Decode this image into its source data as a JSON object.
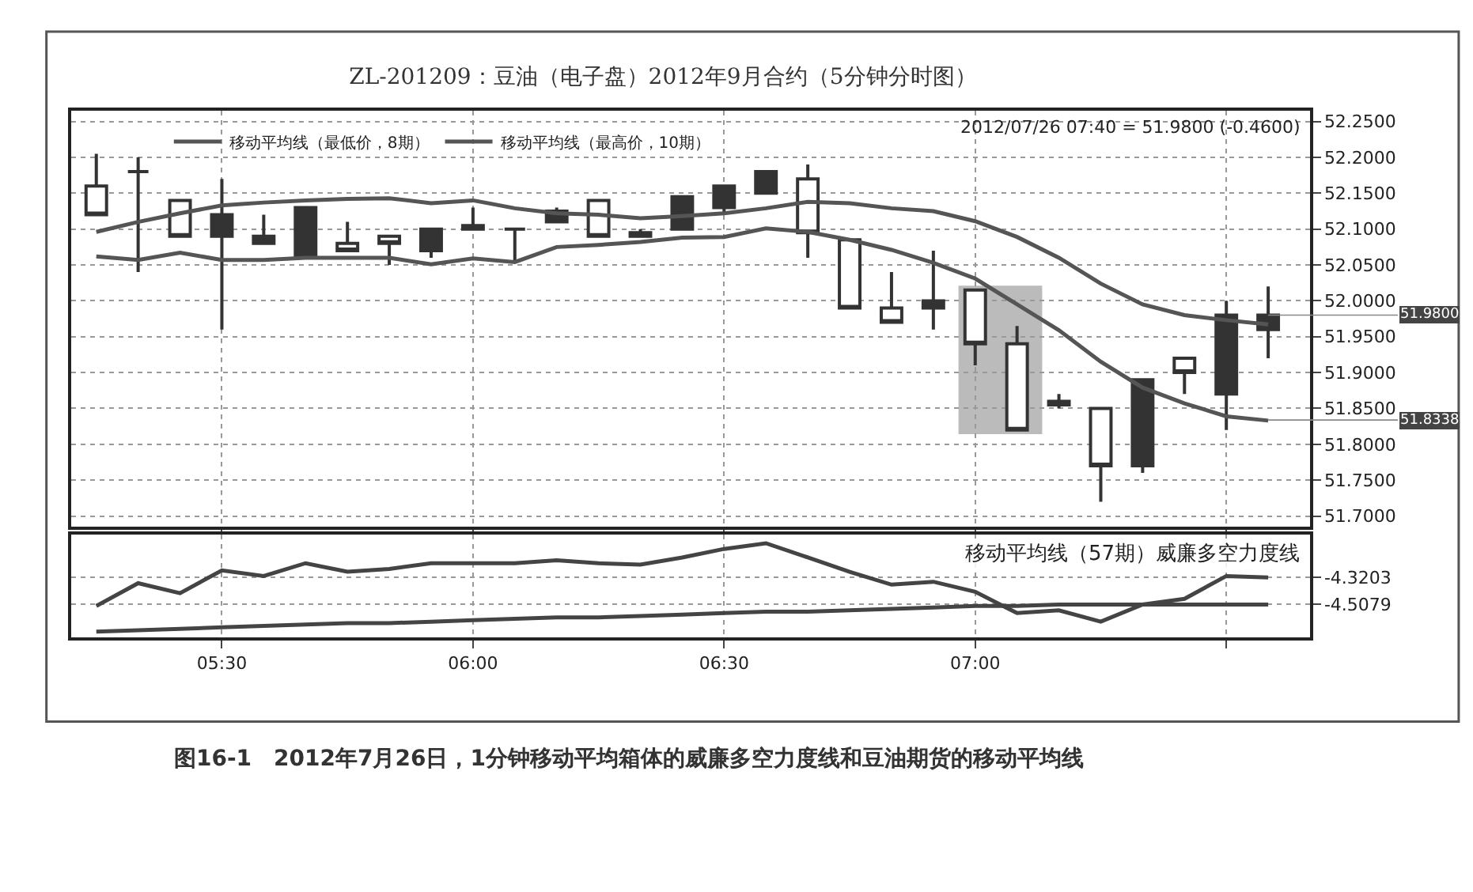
{
  "chart_data": [
    {
      "type": "candlestick",
      "title": "ZL-201209：豆油（电子盘）2012年9月合约（5分钟分时图）",
      "color": "#333333",
      "x": [
        "2012-07-26T05:15",
        "2012-07-26T05:20",
        "2012-07-26T05:25",
        "2012-07-26T05:30",
        "2012-07-26T05:35",
        "2012-07-26T05:40",
        "2012-07-26T05:45",
        "2012-07-26T05:50",
        "2012-07-26T05:55",
        "2012-07-26T06:00",
        "2012-07-26T06:05",
        "2012-07-26T06:10",
        "2012-07-26T06:15",
        "2012-07-26T06:20",
        "2012-07-26T06:25",
        "2012-07-26T06:30",
        "2012-07-26T06:35",
        "2012-07-26T06:40",
        "2012-07-26T06:45",
        "2012-07-26T06:50",
        "2012-07-26T06:55",
        "2012-07-26T07:00",
        "2012-07-26T07:05",
        "2012-07-26T07:10",
        "2012-07-26T07:15",
        "2012-07-26T07:20",
        "2012-07-26T07:25",
        "2012-07-26T07:30",
        "2012-07-26T07:35"
      ],
      "ohlc": [
        [
          52.16,
          52.205,
          52.12,
          52.12
        ],
        [
          52.18,
          52.2,
          52.04,
          52.18
        ],
        [
          52.14,
          52.14,
          52.09,
          52.09
        ],
        [
          52.09,
          52.17,
          51.96,
          52.12
        ],
        [
          52.08,
          52.12,
          52.08,
          52.09
        ],
        [
          52.06,
          52.13,
          52.06,
          52.13
        ],
        [
          52.08,
          52.11,
          52.07,
          52.07
        ],
        [
          52.09,
          52.09,
          52.05,
          52.08
        ],
        [
          52.07,
          52.1,
          52.06,
          52.1
        ],
        [
          52.1,
          52.13,
          52.1,
          52.105
        ],
        [
          52.1,
          52.1,
          52.055,
          52.1
        ],
        [
          52.11,
          52.13,
          52.11,
          52.125
        ],
        [
          52.14,
          52.14,
          52.09,
          52.09
        ],
        [
          52.09,
          52.1,
          52.09,
          52.095
        ],
        [
          52.1,
          52.145,
          52.1,
          52.145
        ],
        [
          52.13,
          52.16,
          52.12,
          52.16
        ],
        [
          52.15,
          52.18,
          52.15,
          52.18
        ],
        [
          52.17,
          52.19,
          52.06,
          52.095
        ],
        [
          52.085,
          52.085,
          51.99,
          51.99
        ],
        [
          51.99,
          52.04,
          51.97,
          51.97
        ],
        [
          51.99,
          52.07,
          51.96,
          52.0
        ],
        [
          52.015,
          52.015,
          51.91,
          51.94
        ],
        [
          51.94,
          51.965,
          51.82,
          51.82
        ],
        [
          51.86,
          51.87,
          51.85,
          51.855
        ],
        [
          51.85,
          51.85,
          51.72,
          51.77
        ],
        [
          51.77,
          51.89,
          51.76,
          51.89
        ],
        [
          51.92,
          51.92,
          51.87,
          51.9
        ],
        [
          51.87,
          52.0,
          51.82,
          51.98
        ],
        [
          51.96,
          52.02,
          51.92,
          51.98
        ]
      ],
      "series": [
        {
          "type": "line",
          "name": "移动平均线（最低价，8期）",
          "color": "#555555",
          "values": [
            52.062,
            52.057,
            52.067,
            52.057,
            52.057,
            52.06,
            52.06,
            52.06,
            52.051,
            52.059,
            52.054,
            52.075,
            52.078,
            52.082,
            52.088,
            52.089,
            52.101,
            52.096,
            52.085,
            52.071,
            52.053,
            52.031,
            51.995,
            51.959,
            51.915,
            51.879,
            51.857,
            51.839,
            51.833
          ]
        },
        {
          "type": "line",
          "name": "移动平均线（最高价，10期）",
          "color": "#555555",
          "values": [
            52.096,
            52.11,
            52.122,
            52.133,
            52.137,
            52.14,
            52.142,
            52.143,
            52.136,
            52.14,
            52.129,
            52.122,
            52.12,
            52.115,
            52.118,
            52.122,
            52.129,
            52.138,
            52.136,
            52.129,
            52.125,
            52.111,
            52.089,
            52.06,
            52.024,
            51.995,
            51.98,
            51.973,
            51.967
          ]
        }
      ],
      "bands": [
        {
          "axis": "x",
          "from": "2012-07-26T06:58",
          "to": "2012-07-26T07:08",
          "color": "#bbbbbb"
        }
      ],
      "annotations": [
        "2012/07/26 07:40 = 51.9800 (-0.4600)",
        {
          "text": "51.9800",
          "x": "2012-07-26T07:35",
          "y": 51.98
        },
        {
          "text": "51.8338",
          "x": "2012-07-26T07:35",
          "y": 51.8338
        }
      ],
      "xlim": [
        "2012-07-26T05:12",
        "2012-07-26T07:40"
      ],
      "xticks": [
        {
          "value": "2012-07-26T05:30",
          "label": null
        },
        {
          "value": "2012-07-26T06:00",
          "label": null
        },
        {
          "value": "2012-07-26T06:30",
          "label": null
        },
        {
          "value": "2012-07-26T07:00",
          "label": null
        },
        {
          "value": "2012-07-26T07:30",
          "label": null
        }
      ],
      "ylim": [
        51.685,
        52.265
      ],
      "yticks": [
        {
          "value": 51.7,
          "label": "51.7000"
        },
        {
          "value": 51.75,
          "label": "51.7500"
        },
        {
          "value": 51.8,
          "label": "51.8000"
        },
        {
          "value": 51.85,
          "label": "51.8500"
        },
        {
          "value": 51.9,
          "label": "51.9000"
        },
        {
          "value": 51.95,
          "label": "51.9500"
        },
        {
          "value": 52.0,
          "label": "52.0000"
        },
        {
          "value": 52.05,
          "label": "52.0500"
        },
        {
          "value": 52.1,
          "label": "52.1000"
        },
        {
          "value": 52.15,
          "label": "52.1500"
        },
        {
          "value": 52.2,
          "label": "52.2000"
        },
        {
          "value": 52.25,
          "label": "52.2500"
        }
      ],
      "grid": true,
      "legend": "top",
      "tick_labels": "y"
    },
    {
      "type": "line",
      "x": [
        "2012-07-26T05:15",
        "2012-07-26T05:20",
        "2012-07-26T05:25",
        "2012-07-26T05:30",
        "2012-07-26T05:35",
        "2012-07-26T05:40",
        "2012-07-26T05:45",
        "2012-07-26T05:50",
        "2012-07-26T05:55",
        "2012-07-26T06:00",
        "2012-07-26T06:05",
        "2012-07-26T06:10",
        "2012-07-26T06:15",
        "2012-07-26T06:20",
        "2012-07-26T06:25",
        "2012-07-26T06:30",
        "2012-07-26T06:35",
        "2012-07-26T06:40",
        "2012-07-26T06:45",
        "2012-07-26T06:50",
        "2012-07-26T06:55",
        "2012-07-26T07:00",
        "2012-07-26T07:05",
        "2012-07-26T07:10",
        "2012-07-26T07:15",
        "2012-07-26T07:20",
        "2012-07-26T07:25",
        "2012-07-26T07:30",
        "2012-07-26T07:35"
      ],
      "series": [
        {
          "color": "#444444",
          "values": [
            -4.52,
            -4.36,
            -4.43,
            -4.27,
            -4.31,
            -4.22,
            -4.28,
            -4.26,
            -4.22,
            -4.22,
            -4.22,
            -4.2,
            -4.22,
            -4.23,
            -4.18,
            -4.12,
            -4.08,
            -4.18,
            -4.28,
            -4.37,
            -4.35,
            -4.42,
            -4.57,
            -4.55,
            -4.63,
            -4.51,
            -4.47,
            -4.31,
            -4.32
          ]
        },
        {
          "color": "#444444",
          "values": [
            -4.7,
            -4.69,
            -4.68,
            -4.67,
            -4.66,
            -4.65,
            -4.64,
            -4.64,
            -4.63,
            -4.62,
            -4.61,
            -4.6,
            -4.6,
            -4.59,
            -4.58,
            -4.57,
            -4.56,
            -4.56,
            -4.55,
            -4.54,
            -4.53,
            -4.52,
            -4.52,
            -4.51,
            -4.51,
            -4.51,
            -4.51,
            -4.51,
            -4.51
          ]
        }
      ],
      "annotations": [
        "移动平均线（57期）威廉多空力度线",
        "图16-1　2012年7月26日，1分钟移动平均箱体的威廉多空力度线和豆油期货的移动平均线"
      ],
      "xlim": [
        "2012-07-26T05:12",
        "2012-07-26T07:40"
      ],
      "xticks": [
        {
          "value": "2012-07-26T05:30",
          "label": "05:30"
        },
        {
          "value": "2012-07-26T06:00",
          "label": "06:00"
        },
        {
          "value": "2012-07-26T06:30",
          "label": "06:30"
        },
        {
          "value": "2012-07-26T07:00",
          "label": "07:00"
        },
        {
          "value": "2012-07-26T07:30",
          "label": null
        }
      ],
      "ylim": [
        -4.74,
        -4.02
      ],
      "yticks": [
        {
          "value": -4.5079,
          "label": "-4.5079"
        },
        {
          "value": -4.3203,
          "label": "-4.3203"
        }
      ],
      "grid": true
    }
  ]
}
